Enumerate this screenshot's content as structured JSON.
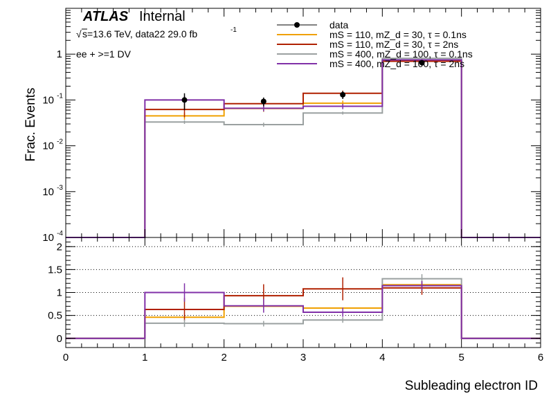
{
  "chart_data": [
    {
      "type": "step",
      "panel": "main",
      "ylabel": "Frac. Events",
      "yscale": "log",
      "ylim": [
        0.0001,
        10
      ],
      "xlim": [
        0,
        6
      ],
      "yticks": [
        {
          "v": 0.0001,
          "base": "10",
          "exp": "-4"
        },
        {
          "v": 0.001,
          "base": "10",
          "exp": "-3"
        },
        {
          "v": 0.01,
          "base": "10",
          "exp": "-2"
        },
        {
          "v": 0.1,
          "base": "10",
          "exp": "-1"
        },
        {
          "v": 1,
          "base": "1",
          "exp": ""
        }
      ],
      "bin_edges": [
        0,
        1,
        2,
        3,
        4,
        5,
        6
      ],
      "data": {
        "name": "data",
        "x": [
          1.5,
          2.5,
          3.5,
          4.5
        ],
        "y": [
          0.1,
          0.093,
          0.13,
          0.65
        ],
        "err": [
          0.04,
          0.02,
          0.025,
          0.06
        ]
      },
      "series": [
        {
          "name": "mS = 110, mZ_d = 30, τ = 0.1ns",
          "color": "#f0a000",
          "values": [
            0,
            0.045,
            0.065,
            0.085,
            0.73,
            0
          ],
          "err": [
            0,
            0.008,
            0.01,
            0.012,
            0.03,
            0
          ]
        },
        {
          "name": "mS = 110, mZ_d = 30, τ = 2ns",
          "color": "#b02000",
          "values": [
            0,
            0.062,
            0.083,
            0.14,
            0.7,
            0
          ],
          "err": [
            0,
            0.02,
            0.02,
            0.02,
            0.04,
            0
          ]
        },
        {
          "name": "mS = 400, mZ_d = 100, τ = 0.1ns",
          "color": "#9aa0a0",
          "values": [
            0,
            0.033,
            0.029,
            0.052,
            0.81,
            0
          ],
          "err": [
            0,
            0.003,
            0.003,
            0.004,
            0.03,
            0
          ]
        },
        {
          "name": "mS = 400, mZ_d = 100, τ = 2ns",
          "color": "#8030a8",
          "values": [
            0,
            0.1,
            0.066,
            0.073,
            0.75,
            0
          ],
          "err": [
            0,
            0.02,
            0.01,
            0.01,
            0.03,
            0
          ]
        }
      ],
      "annotations": {
        "atlas": "ATLAS",
        "internal": "Internal",
        "sqrt_s": "s=13.6 TeV, data22 29.0 fb",
        "lumi_exp": "-1",
        "selection": "ee + >=1 DV"
      },
      "legend": "top-right"
    },
    {
      "type": "step",
      "panel": "ratio",
      "xlabel": "Subleading electron ID",
      "ylim": [
        -0.2,
        2.2
      ],
      "xlim": [
        0,
        6
      ],
      "xticks": [
        0,
        1,
        2,
        3,
        4,
        5,
        6
      ],
      "yticks": [
        "0",
        "0.5",
        "1",
        "1.5",
        "2"
      ],
      "grid_y": [
        0.5,
        1,
        1.5,
        2
      ],
      "series": [
        {
          "name": "mS = 110, mZ_d = 30, τ = 0.1ns",
          "color": "#f0a000",
          "values": [
            0,
            0.46,
            0.7,
            0.66,
            1.17,
            0
          ],
          "err": [
            0,
            0,
            0,
            0,
            0,
            0
          ]
        },
        {
          "name": "mS = 110, mZ_d = 30, τ = 2ns",
          "color": "#b02000",
          "values": [
            0,
            0.63,
            0.93,
            1.08,
            1.1,
            0
          ],
          "err": [
            0,
            0.25,
            0.25,
            0.25,
            0.15,
            0
          ]
        },
        {
          "name": "mS = 400, mZ_d = 100, τ = 0.1ns",
          "color": "#9aa0a0",
          "values": [
            0,
            0.33,
            0.32,
            0.4,
            1.3,
            0
          ],
          "err": [
            0,
            0.08,
            0.06,
            0.06,
            0.1,
            0
          ]
        },
        {
          "name": "mS = 400, mZ_d = 100, τ = 2ns",
          "color": "#8030a8",
          "values": [
            0,
            1.0,
            0.71,
            0.57,
            1.15,
            0
          ],
          "err": [
            0,
            0.2,
            0.15,
            0.1,
            0.1,
            0
          ]
        }
      ]
    }
  ]
}
